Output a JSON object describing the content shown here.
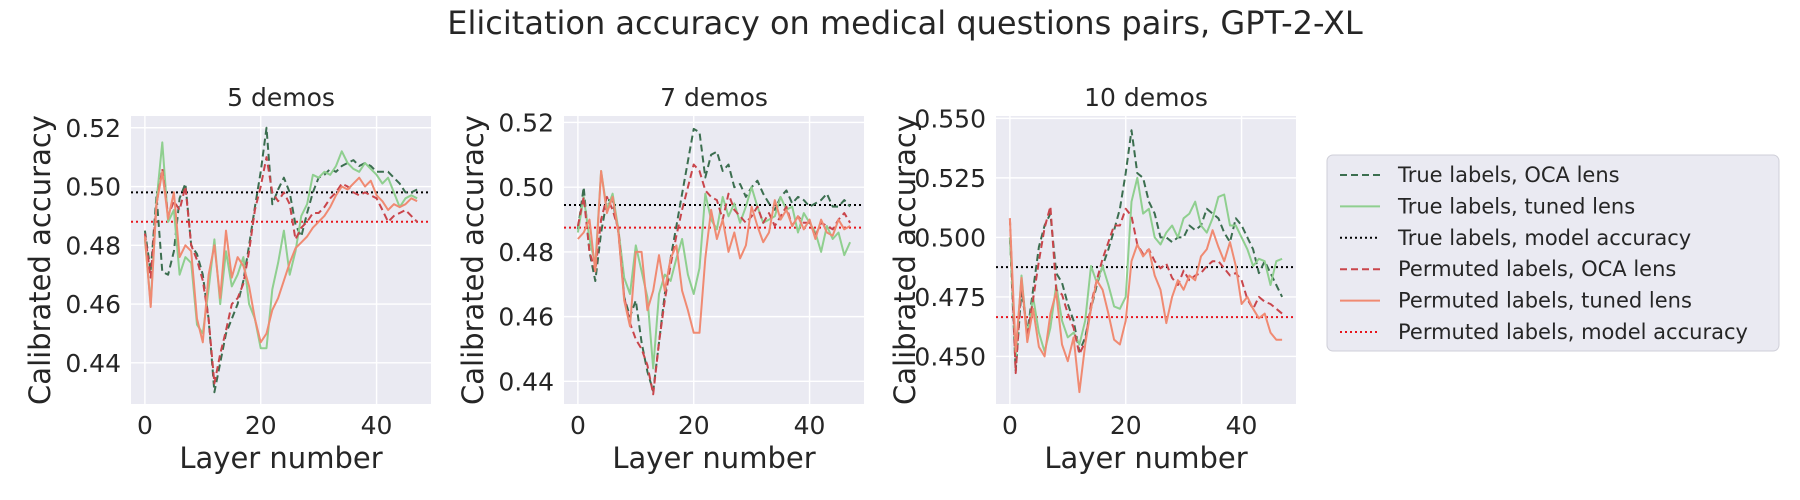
{
  "figure": {
    "title": "Elicitation accuracy on medical questions pairs, GPT-2-XL"
  },
  "legend": {
    "placement": "right",
    "entries": [
      {
        "label": "True labels, OCA lens",
        "color": "#3b6e4f",
        "dash": "dashed"
      },
      {
        "label": "True labels, tuned lens",
        "color": "#8fcf8f",
        "dash": "solid"
      },
      {
        "label": "True labels, model accuracy",
        "color": "#000000",
        "dash": "dotted"
      },
      {
        "label": "Permuted labels, OCA lens",
        "color": "#c9454b",
        "dash": "dashed"
      },
      {
        "label": "Permuted labels, tuned lens",
        "color": "#f08a72",
        "dash": "solid"
      },
      {
        "label": "Permuted labels, model accuracy",
        "color": "#e8141c",
        "dash": "dotted"
      }
    ]
  },
  "style": {
    "panel_background": "#eaeaf2",
    "grid_color": "#ffffff",
    "grid": true
  },
  "chart_data": [
    {
      "type": "line",
      "title": "5 demos",
      "xlabel": "Layer number",
      "ylabel": "Calibrated accuracy",
      "xlim": [
        -2.4,
        49.4
      ],
      "ylim": [
        0.426,
        0.524
      ],
      "xticks": [
        0,
        20,
        40
      ],
      "xtick_labels": [
        "0",
        "20",
        "40"
      ],
      "yticks": [
        0.44,
        0.46,
        0.48,
        0.5,
        0.52
      ],
      "ytick_labels": [
        "0.44",
        "0.46",
        "0.48",
        "0.50",
        "0.52"
      ],
      "x": [
        0,
        1,
        2,
        3,
        4,
        5,
        6,
        7,
        8,
        9,
        10,
        11,
        12,
        13,
        14,
        15,
        16,
        17,
        18,
        19,
        20,
        21,
        22,
        23,
        24,
        25,
        26,
        27,
        28,
        29,
        30,
        31,
        32,
        33,
        34,
        35,
        36,
        37,
        38,
        39,
        40,
        41,
        42,
        43,
        44,
        45,
        46,
        47
      ],
      "hlines": [
        {
          "name": "True labels, model accuracy",
          "y": 0.498,
          "color": "#000000",
          "dash": "dotted"
        },
        {
          "name": "Permuted labels, model accuracy",
          "y": 0.488,
          "color": "#e8141c",
          "dash": "dotted"
        }
      ],
      "series": [
        {
          "name": "True labels, OCA lens",
          "color": "#3b6e4f",
          "dash": "dashed",
          "values": [
            0.485,
            0.471,
            0.497,
            0.471,
            0.47,
            0.478,
            0.496,
            0.501,
            0.48,
            0.477,
            0.47,
            0.455,
            0.43,
            0.44,
            0.45,
            0.455,
            0.46,
            0.468,
            0.48,
            0.493,
            0.505,
            0.52,
            0.494,
            0.499,
            0.503,
            0.498,
            0.487,
            0.483,
            0.491,
            0.498,
            0.503,
            0.504,
            0.506,
            0.505,
            0.507,
            0.508,
            0.509,
            0.507,
            0.508,
            0.507,
            0.505,
            0.505,
            0.505,
            0.503,
            0.501,
            0.498,
            0.498,
            0.499
          ]
        },
        {
          "name": "True labels, tuned lens",
          "color": "#8fcf8f",
          "dash": "solid",
          "values": [
            0.482,
            0.46,
            0.495,
            0.515,
            0.488,
            0.492,
            0.47,
            0.476,
            0.474,
            0.453,
            0.45,
            0.465,
            0.482,
            0.46,
            0.478,
            0.466,
            0.47,
            0.476,
            0.46,
            0.455,
            0.445,
            0.445,
            0.465,
            0.474,
            0.485,
            0.47,
            0.478,
            0.49,
            0.494,
            0.504,
            0.503,
            0.505,
            0.504,
            0.507,
            0.512,
            0.508,
            0.506,
            0.505,
            0.508,
            0.506,
            0.504,
            0.501,
            0.503,
            0.498,
            0.493,
            0.496,
            0.497,
            0.496
          ]
        },
        {
          "name": "Permuted labels, OCA lens",
          "color": "#c9454b",
          "dash": "dashed",
          "values": [
            0.484,
            0.469,
            0.494,
            0.506,
            0.49,
            0.495,
            0.492,
            0.5,
            0.48,
            0.475,
            0.468,
            0.455,
            0.433,
            0.443,
            0.451,
            0.46,
            0.462,
            0.467,
            0.478,
            0.492,
            0.5,
            0.51,
            0.498,
            0.495,
            0.498,
            0.494,
            0.482,
            0.486,
            0.488,
            0.491,
            0.491,
            0.493,
            0.496,
            0.498,
            0.501,
            0.5,
            0.498,
            0.497,
            0.498,
            0.497,
            0.496,
            0.492,
            0.488,
            0.49,
            0.491,
            0.492,
            0.49,
            0.488
          ]
        },
        {
          "name": "Permuted labels, tuned lens",
          "color": "#f08a72",
          "dash": "solid",
          "values": [
            0.483,
            0.459,
            0.494,
            0.505,
            0.489,
            0.498,
            0.476,
            0.48,
            0.478,
            0.455,
            0.447,
            0.47,
            0.48,
            0.462,
            0.485,
            0.469,
            0.476,
            0.473,
            0.466,
            0.455,
            0.447,
            0.45,
            0.458,
            0.462,
            0.468,
            0.474,
            0.479,
            0.481,
            0.483,
            0.486,
            0.488,
            0.49,
            0.493,
            0.497,
            0.5,
            0.499,
            0.501,
            0.503,
            0.5,
            0.502,
            0.497,
            0.495,
            0.492,
            0.494,
            0.493,
            0.494,
            0.496,
            0.495
          ]
        }
      ]
    },
    {
      "type": "line",
      "title": "7 demos",
      "xlabel": "Layer number",
      "ylabel": "Calibrated accuracy",
      "xlim": [
        -2.4,
        49.4
      ],
      "ylim": [
        0.433,
        0.522
      ],
      "xticks": [
        0,
        20,
        40
      ],
      "xtick_labels": [
        "0",
        "20",
        "40"
      ],
      "yticks": [
        0.44,
        0.46,
        0.48,
        0.5,
        0.52
      ],
      "ytick_labels": [
        "0.44",
        "0.46",
        "0.48",
        "0.50",
        "0.52"
      ],
      "x": [
        0,
        1,
        2,
        3,
        4,
        5,
        6,
        7,
        8,
        9,
        10,
        11,
        12,
        13,
        14,
        15,
        16,
        17,
        18,
        19,
        20,
        21,
        22,
        23,
        24,
        25,
        26,
        27,
        28,
        29,
        30,
        31,
        32,
        33,
        34,
        35,
        36,
        37,
        38,
        39,
        40,
        41,
        42,
        43,
        44,
        45,
        46,
        47
      ],
      "hlines": [
        {
          "name": "True labels, model accuracy",
          "y": 0.4945,
          "color": "#000000",
          "dash": "dotted"
        },
        {
          "name": "Permuted labels, model accuracy",
          "y": 0.4875,
          "color": "#e8141c",
          "dash": "dotted"
        }
      ],
      "series": [
        {
          "name": "True labels, OCA lens",
          "color": "#3b6e4f",
          "dash": "dashed",
          "values": [
            0.487,
            0.5,
            0.48,
            0.471,
            0.486,
            0.496,
            0.496,
            0.486,
            0.466,
            0.46,
            0.465,
            0.452,
            0.443,
            0.437,
            0.452,
            0.467,
            0.478,
            0.488,
            0.498,
            0.508,
            0.518,
            0.517,
            0.503,
            0.51,
            0.511,
            0.505,
            0.507,
            0.5,
            0.501,
            0.497,
            0.5,
            0.502,
            0.498,
            0.495,
            0.493,
            0.497,
            0.499,
            0.495,
            0.497,
            0.496,
            0.494,
            0.495,
            0.496,
            0.498,
            0.494,
            0.494,
            0.496,
            0.494
          ]
        },
        {
          "name": "True labels, tuned lens",
          "color": "#8fcf8f",
          "dash": "solid",
          "values": [
            0.486,
            0.497,
            0.484,
            0.476,
            0.505,
            0.493,
            0.498,
            0.487,
            0.472,
            0.467,
            0.482,
            0.474,
            0.466,
            0.444,
            0.467,
            0.473,
            0.471,
            0.478,
            0.484,
            0.473,
            0.467,
            0.475,
            0.498,
            0.49,
            0.487,
            0.497,
            0.491,
            0.495,
            0.489,
            0.494,
            0.5,
            0.494,
            0.489,
            0.49,
            0.491,
            0.497,
            0.493,
            0.494,
            0.486,
            0.492,
            0.489,
            0.486,
            0.48,
            0.488,
            0.484,
            0.486,
            0.479,
            0.483
          ]
        },
        {
          "name": "Permuted labels, OCA lens",
          "color": "#c9454b",
          "dash": "dashed",
          "values": [
            0.488,
            0.497,
            0.48,
            0.474,
            0.49,
            0.497,
            0.493,
            0.487,
            0.466,
            0.458,
            0.453,
            0.45,
            0.445,
            0.436,
            0.452,
            0.465,
            0.476,
            0.485,
            0.493,
            0.5,
            0.507,
            0.505,
            0.499,
            0.497,
            0.496,
            0.49,
            0.498,
            0.493,
            0.491,
            0.489,
            0.491,
            0.494,
            0.489,
            0.492,
            0.488,
            0.491,
            0.494,
            0.488,
            0.491,
            0.489,
            0.489,
            0.485,
            0.489,
            0.488,
            0.487,
            0.49,
            0.492,
            0.489
          ]
        },
        {
          "name": "Permuted labels, tuned lens",
          "color": "#f08a72",
          "dash": "solid",
          "values": [
            0.484,
            0.486,
            0.49,
            0.474,
            0.505,
            0.492,
            0.497,
            0.486,
            0.465,
            0.457,
            0.48,
            0.48,
            0.462,
            0.468,
            0.479,
            0.468,
            0.478,
            0.482,
            0.468,
            0.462,
            0.455,
            0.455,
            0.478,
            0.493,
            0.484,
            0.49,
            0.48,
            0.486,
            0.478,
            0.482,
            0.494,
            0.488,
            0.483,
            0.486,
            0.496,
            0.49,
            0.493,
            0.488,
            0.491,
            0.487,
            0.49,
            0.484,
            0.49,
            0.486,
            0.485,
            0.49,
            0.487,
            0.488
          ]
        }
      ]
    },
    {
      "type": "line",
      "title": "10 demos",
      "xlabel": "Layer number",
      "ylabel": "Calibrated accuracy",
      "xlim": [
        -2.4,
        49.4
      ],
      "ylim": [
        0.43,
        0.551
      ],
      "xticks": [
        0,
        20,
        40
      ],
      "xtick_labels": [
        "0",
        "20",
        "40"
      ],
      "yticks": [
        0.45,
        0.475,
        0.5,
        0.525,
        0.55
      ],
      "ytick_labels": [
        "0.450",
        "0.475",
        "0.500",
        "0.525",
        "0.550"
      ],
      "x": [
        0,
        1,
        2,
        3,
        4,
        5,
        6,
        7,
        8,
        9,
        10,
        11,
        12,
        13,
        14,
        15,
        16,
        17,
        18,
        19,
        20,
        21,
        22,
        23,
        24,
        25,
        26,
        27,
        28,
        29,
        30,
        31,
        32,
        33,
        34,
        35,
        36,
        37,
        38,
        39,
        40,
        41,
        42,
        43,
        44,
        45,
        46,
        47
      ],
      "hlines": [
        {
          "name": "True labels, model accuracy",
          "y": 0.4875,
          "color": "#000000",
          "dash": "dotted"
        },
        {
          "name": "Permuted labels, model accuracy",
          "y": 0.4665,
          "color": "#e8141c",
          "dash": "dotted"
        }
      ],
      "series": [
        {
          "name": "True labels, OCA lens",
          "color": "#3b6e4f",
          "dash": "dashed",
          "values": [
            0.5,
            0.444,
            0.478,
            0.46,
            0.478,
            0.496,
            0.505,
            0.51,
            0.485,
            0.481,
            0.472,
            0.465,
            0.452,
            0.458,
            0.47,
            0.48,
            0.488,
            0.495,
            0.503,
            0.512,
            0.527,
            0.545,
            0.527,
            0.525,
            0.515,
            0.51,
            0.5,
            0.5,
            0.498,
            0.5,
            0.5,
            0.505,
            0.503,
            0.505,
            0.512,
            0.51,
            0.508,
            0.502,
            0.498,
            0.508,
            0.505,
            0.5,
            0.495,
            0.485,
            0.49,
            0.485,
            0.48,
            0.475
          ]
        },
        {
          "name": "True labels, tuned lens",
          "color": "#8fcf8f",
          "dash": "solid",
          "values": [
            0.5,
            0.45,
            0.484,
            0.458,
            0.475,
            0.46,
            0.452,
            0.462,
            0.48,
            0.465,
            0.458,
            0.46,
            0.455,
            0.465,
            0.488,
            0.481,
            0.488,
            0.48,
            0.471,
            0.47,
            0.475,
            0.515,
            0.525,
            0.51,
            0.512,
            0.5,
            0.497,
            0.502,
            0.505,
            0.5,
            0.508,
            0.51,
            0.515,
            0.505,
            0.502,
            0.508,
            0.517,
            0.518,
            0.505,
            0.505,
            0.5,
            0.495,
            0.488,
            0.491,
            0.49,
            0.48,
            0.49,
            0.491
          ]
        },
        {
          "name": "Permuted labels, OCA lens",
          "color": "#c9454b",
          "dash": "dashed",
          "values": [
            0.508,
            0.443,
            0.482,
            0.458,
            0.474,
            0.49,
            0.504,
            0.513,
            0.478,
            0.476,
            0.468,
            0.462,
            0.451,
            0.456,
            0.472,
            0.482,
            0.491,
            0.498,
            0.505,
            0.505,
            0.512,
            0.509,
            0.497,
            0.493,
            0.495,
            0.49,
            0.487,
            0.489,
            0.483,
            0.48,
            0.486,
            0.482,
            0.484,
            0.485,
            0.488,
            0.49,
            0.49,
            0.487,
            0.484,
            0.485,
            0.482,
            0.474,
            0.47,
            0.475,
            0.473,
            0.472,
            0.47,
            0.468
          ]
        },
        {
          "name": "Permuted labels, tuned lens",
          "color": "#f08a72",
          "dash": "solid",
          "values": [
            0.508,
            0.452,
            0.483,
            0.456,
            0.47,
            0.454,
            0.45,
            0.468,
            0.477,
            0.455,
            0.448,
            0.458,
            0.435,
            0.455,
            0.47,
            0.482,
            0.478,
            0.468,
            0.457,
            0.455,
            0.465,
            0.49,
            0.497,
            0.492,
            0.495,
            0.484,
            0.478,
            0.464,
            0.475,
            0.482,
            0.478,
            0.484,
            0.482,
            0.492,
            0.495,
            0.503,
            0.496,
            0.49,
            0.498,
            0.488,
            0.472,
            0.475,
            0.47,
            0.466,
            0.468,
            0.46,
            0.457,
            0.457
          ]
        }
      ]
    }
  ]
}
